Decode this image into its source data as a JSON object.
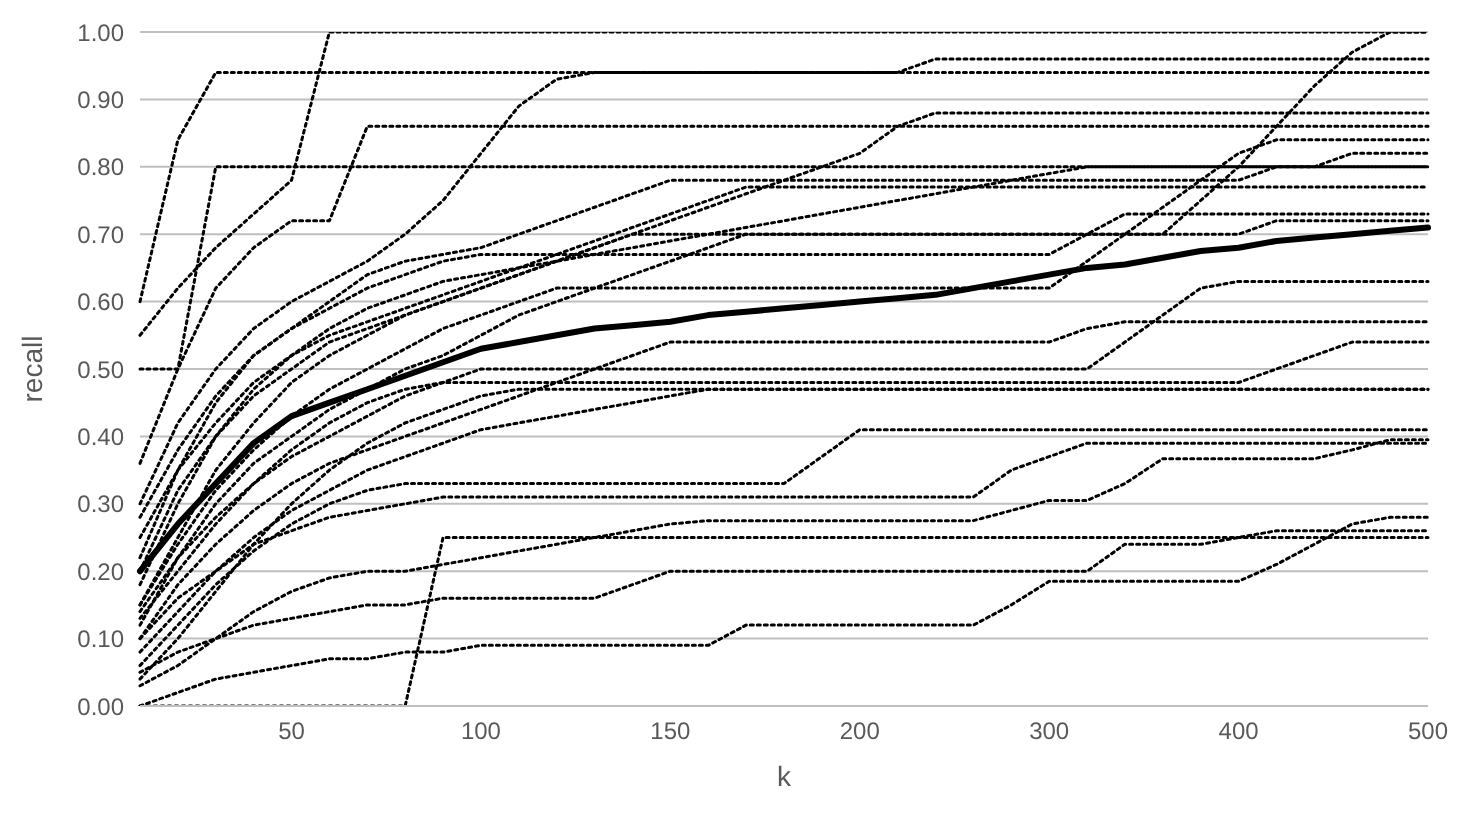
{
  "chart_data": {
    "type": "line",
    "xlabel": "k",
    "ylabel": "recall",
    "grid": "y",
    "marker": "none",
    "line_style": "dotted",
    "categories": [
      null,
      null,
      null,
      null,
      "50",
      null,
      null,
      null,
      null,
      "100",
      null,
      null,
      null,
      null,
      "150",
      null,
      null,
      null,
      null,
      "200",
      null,
      null,
      null,
      null,
      "300",
      null,
      null,
      null,
      null,
      "400",
      null,
      null,
      null,
      null,
      "500"
    ],
    "ylim": [
      0,
      1
    ],
    "yticks": [
      {
        "value": 0,
        "label": "0.00"
      },
      {
        "value": 0.1,
        "label": "0.10"
      },
      {
        "value": 0.2,
        "label": "0.20"
      },
      {
        "value": 0.3,
        "label": "0.30"
      },
      {
        "value": 0.4,
        "label": "0.40"
      },
      {
        "value": 0.5,
        "label": "0.50"
      },
      {
        "value": 0.6,
        "label": "0.60"
      },
      {
        "value": 0.7,
        "label": "0.70"
      },
      {
        "value": 0.8,
        "label": "0.80"
      },
      {
        "value": 0.9,
        "label": "0.90"
      },
      {
        "value": 1,
        "label": "1.00"
      }
    ],
    "series": [
      {
        "color": "#000000",
        "values": [
          0.6,
          0.84,
          0.94,
          0.94,
          0.94,
          0.94,
          0.94,
          0.94,
          0.94,
          0.94,
          0.94,
          0.94,
          0.94,
          0.94,
          0.94,
          0.94,
          0.94,
          0.94,
          0.94,
          0.94,
          0.94,
          0.96,
          0.96,
          0.96,
          0.96,
          0.96,
          0.96,
          0.96,
          0.96,
          0.96,
          0.96,
          0.96,
          0.96,
          0.96,
          0.96
        ]
      },
      {
        "color": "#000000",
        "values": [
          0.55,
          0.62,
          0.68,
          0.73,
          0.78,
          1.0,
          1.0,
          1.0,
          1.0,
          1.0,
          1.0,
          1.0,
          1.0,
          1.0,
          1.0,
          1.0,
          1.0,
          1.0,
          1.0,
          1.0,
          1.0,
          1.0,
          1.0,
          1.0,
          1.0,
          1.0,
          1.0,
          1.0,
          1.0,
          1.0,
          1.0,
          1.0,
          1.0,
          1.0,
          1.0
        ]
      },
      {
        "color": "#000000",
        "values": [
          0.5,
          0.5,
          0.8,
          0.8,
          0.8,
          0.8,
          0.8,
          0.8,
          0.8,
          0.8,
          0.8,
          0.8,
          0.8,
          0.8,
          0.8,
          0.8,
          0.8,
          0.8,
          0.8,
          0.8,
          0.8,
          0.8,
          0.8,
          0.8,
          0.8,
          0.8,
          0.8,
          0.8,
          0.8,
          0.8,
          0.8,
          0.8,
          0.8,
          0.8,
          0.8
        ]
      },
      {
        "color": "#000000",
        "values": [
          0.36,
          0.5,
          0.62,
          0.68,
          0.72,
          0.72,
          0.86,
          0.86,
          0.86,
          0.86,
          0.86,
          0.86,
          0.86,
          0.86,
          0.86,
          0.86,
          0.86,
          0.86,
          0.86,
          0.86,
          0.86,
          0.86,
          0.86,
          0.86,
          0.86,
          0.86,
          0.86,
          0.86,
          0.86,
          0.86,
          0.86,
          0.86,
          0.86,
          0.86,
          0.86
        ]
      },
      {
        "color": "#000000",
        "values": [
          0.3,
          0.42,
          0.5,
          0.56,
          0.6,
          0.63,
          0.66,
          0.7,
          0.75,
          0.82,
          0.89,
          0.93,
          0.94,
          0.94,
          0.94,
          0.94,
          0.94,
          0.94,
          0.94,
          0.94,
          0.94,
          0.94,
          0.94,
          0.94,
          0.94,
          0.94,
          0.94,
          0.94,
          0.94,
          0.94,
          0.94,
          0.94,
          0.94,
          0.94,
          0.94
        ]
      },
      {
        "color": "#000000",
        "values": [
          0.15,
          0.25,
          0.35,
          0.42,
          0.48,
          0.52,
          0.55,
          0.58,
          0.6,
          0.62,
          0.64,
          0.66,
          0.68,
          0.7,
          0.7,
          0.7,
          0.7,
          0.7,
          0.7,
          0.7,
          0.7,
          0.7,
          0.7,
          0.7,
          0.7,
          0.7,
          0.7,
          0.7,
          0.75,
          0.8,
          0.86,
          0.92,
          0.97,
          1.0,
          1.0
        ]
      },
      {
        "color": "#000000",
        "values": [
          0.22,
          0.35,
          0.45,
          0.52,
          0.56,
          0.6,
          0.64,
          0.66,
          0.67,
          0.68,
          0.7,
          0.72,
          0.74,
          0.76,
          0.78,
          0.78,
          0.78,
          0.78,
          0.78,
          0.78,
          0.78,
          0.78,
          0.78,
          0.78,
          0.78,
          0.78,
          0.78,
          0.78,
          0.78,
          0.78,
          0.8,
          0.8,
          0.82,
          0.82,
          0.82
        ]
      },
      {
        "color": "#000000",
        "values": [
          0.18,
          0.3,
          0.4,
          0.46,
          0.5,
          0.54,
          0.56,
          0.58,
          0.6,
          0.62,
          0.64,
          0.66,
          0.68,
          0.7,
          0.72,
          0.74,
          0.76,
          0.78,
          0.8,
          0.82,
          0.86,
          0.88,
          0.88,
          0.88,
          0.88,
          0.88,
          0.88,
          0.88,
          0.88,
          0.88,
          0.88,
          0.88,
          0.88,
          0.88,
          0.88
        ]
      },
      {
        "color": "#000000",
        "values": [
          0.15,
          0.24,
          0.32,
          0.38,
          0.43,
          0.47,
          0.5,
          0.53,
          0.56,
          0.58,
          0.6,
          0.62,
          0.62,
          0.62,
          0.62,
          0.62,
          0.62,
          0.62,
          0.62,
          0.62,
          0.62,
          0.62,
          0.62,
          0.62,
          0.62,
          0.66,
          0.7,
          0.74,
          0.78,
          0.82,
          0.84,
          0.84,
          0.84,
          0.84,
          0.84
        ]
      },
      {
        "color": "#000000",
        "values": [
          0.12,
          0.22,
          0.3,
          0.36,
          0.4,
          0.44,
          0.47,
          0.5,
          0.52,
          0.55,
          0.58,
          0.6,
          0.62,
          0.64,
          0.66,
          0.68,
          0.7,
          0.7,
          0.7,
          0.7,
          0.7,
          0.7,
          0.7,
          0.7,
          0.7,
          0.7,
          0.7,
          0.7,
          0.7,
          0.7,
          0.72,
          0.72,
          0.72,
          0.72,
          0.72
        ]
      },
      {
        "color": "#000000",
        "values": [
          0.25,
          0.35,
          0.42,
          0.48,
          0.52,
          0.55,
          0.57,
          0.59,
          0.61,
          0.63,
          0.65,
          0.67,
          0.69,
          0.71,
          0.73,
          0.75,
          0.77,
          0.77,
          0.77,
          0.77,
          0.77,
          0.77,
          0.77,
          0.77,
          0.77,
          0.77,
          0.77,
          0.77,
          0.77,
          0.77,
          0.77,
          0.77,
          0.77,
          0.77,
          0.77
        ]
      },
      {
        "color": "#000000",
        "values": [
          0.14,
          0.22,
          0.28,
          0.33,
          0.37,
          0.4,
          0.43,
          0.46,
          0.48,
          0.5,
          0.5,
          0.5,
          0.5,
          0.5,
          0.5,
          0.5,
          0.5,
          0.5,
          0.5,
          0.5,
          0.5,
          0.5,
          0.5,
          0.5,
          0.5,
          0.5,
          0.54,
          0.58,
          0.62,
          0.63,
          0.63,
          0.63,
          0.63,
          0.63,
          0.63
        ]
      },
      {
        "color": "#000000",
        "values": [
          0.1,
          0.18,
          0.24,
          0.29,
          0.33,
          0.36,
          0.38,
          0.4,
          0.42,
          0.44,
          0.46,
          0.48,
          0.5,
          0.52,
          0.54,
          0.54,
          0.54,
          0.54,
          0.54,
          0.54,
          0.54,
          0.54,
          0.54,
          0.54,
          0.54,
          0.56,
          0.57,
          0.57,
          0.57,
          0.57,
          0.57,
          0.57,
          0.57,
          0.57,
          0.57
        ]
      },
      {
        "color": "#000000",
        "values": [
          0.13,
          0.2,
          0.27,
          0.33,
          0.38,
          0.42,
          0.45,
          0.47,
          0.48,
          0.48,
          0.48,
          0.48,
          0.48,
          0.48,
          0.48,
          0.48,
          0.48,
          0.48,
          0.48,
          0.48,
          0.48,
          0.48,
          0.48,
          0.48,
          0.48,
          0.48,
          0.48,
          0.48,
          0.48,
          0.48,
          0.5,
          0.52,
          0.54,
          0.54,
          0.54
        ]
      },
      {
        "color": "#000000",
        "values": [
          0.08,
          0.14,
          0.2,
          0.25,
          0.29,
          0.32,
          0.35,
          0.37,
          0.39,
          0.41,
          0.42,
          0.43,
          0.44,
          0.45,
          0.46,
          0.47,
          0.47,
          0.47,
          0.47,
          0.47,
          0.47,
          0.47,
          0.47,
          0.47,
          0.47,
          0.47,
          0.47,
          0.47,
          0.47,
          0.47,
          0.47,
          0.47,
          0.47,
          0.47,
          0.47
        ]
      },
      {
        "color": "#000000",
        "values": [
          0.06,
          0.12,
          0.18,
          0.23,
          0.27,
          0.3,
          0.32,
          0.33,
          0.33,
          0.33,
          0.33,
          0.33,
          0.33,
          0.33,
          0.33,
          0.33,
          0.33,
          0.33,
          0.37,
          0.41,
          0.41,
          0.41,
          0.41,
          0.41,
          0.41,
          0.41,
          0.41,
          0.41,
          0.41,
          0.41,
          0.41,
          0.41,
          0.41,
          0.41,
          0.41
        ]
      },
      {
        "color": "#000000",
        "values": [
          0.1,
          0.16,
          0.2,
          0.24,
          0.26,
          0.28,
          0.29,
          0.3,
          0.31,
          0.31,
          0.31,
          0.31,
          0.31,
          0.31,
          0.31,
          0.31,
          0.31,
          0.31,
          0.31,
          0.31,
          0.31,
          0.31,
          0.31,
          0.35,
          0.37,
          0.39,
          0.39,
          0.39,
          0.39,
          0.39,
          0.39,
          0.39,
          0.39,
          0.39,
          0.39
        ]
      },
      {
        "color": "#000000",
        "values": [
          0.03,
          0.06,
          0.1,
          0.14,
          0.17,
          0.19,
          0.2,
          0.2,
          0.21,
          0.22,
          0.23,
          0.24,
          0.25,
          0.26,
          0.27,
          0.275,
          0.275,
          0.275,
          0.275,
          0.275,
          0.275,
          0.275,
          0.275,
          0.29,
          0.305,
          0.305,
          0.33,
          0.367,
          0.367,
          0.367,
          0.367,
          0.367,
          0.38,
          0.395,
          0.395
        ]
      },
      {
        "color": "#000000",
        "values": [
          0.0,
          0.02,
          0.04,
          0.05,
          0.06,
          0.07,
          0.07,
          0.08,
          0.08,
          0.09,
          0.09,
          0.09,
          0.09,
          0.09,
          0.09,
          0.09,
          0.12,
          0.12,
          0.12,
          0.12,
          0.12,
          0.12,
          0.12,
          0.15,
          0.185,
          0.185,
          0.185,
          0.185,
          0.185,
          0.185,
          0.21,
          0.24,
          0.27,
          0.28,
          0.28
        ]
      },
      {
        "color": "#000000",
        "values": [
          0.05,
          0.08,
          0.1,
          0.12,
          0.13,
          0.14,
          0.15,
          0.15,
          0.16,
          0.16,
          0.16,
          0.16,
          0.16,
          0.18,
          0.2,
          0.2,
          0.2,
          0.2,
          0.2,
          0.2,
          0.2,
          0.2,
          0.2,
          0.2,
          0.2,
          0.2,
          0.24,
          0.24,
          0.24,
          0.25,
          0.26,
          0.26,
          0.26,
          0.26,
          0.26
        ]
      },
      {
        "color": "#000000",
        "values": [
          0.0,
          0.0,
          0.0,
          0.0,
          0.0,
          0.0,
          0.0,
          0.0,
          0.25,
          0.25,
          0.25,
          0.25,
          0.25,
          0.25,
          0.25,
          0.25,
          0.25,
          0.25,
          0.25,
          0.25,
          0.25,
          0.25,
          0.25,
          0.25,
          0.25,
          0.25,
          0.25,
          0.25,
          0.25,
          0.25,
          0.25,
          0.25,
          0.25,
          0.25,
          0.25
        ]
      },
      {
        "color": "#000000",
        "values": [
          0.04,
          0.1,
          0.17,
          0.24,
          0.3,
          0.35,
          0.39,
          0.42,
          0.44,
          0.46,
          0.47,
          0.47,
          0.47,
          0.47,
          0.47,
          0.47,
          0.47,
          0.47,
          0.47,
          0.47,
          0.47,
          0.47,
          0.47,
          0.47,
          0.47,
          0.47,
          0.47,
          0.47,
          0.47,
          0.47,
          0.47,
          0.47,
          0.47,
          0.47,
          0.47
        ]
      },
      {
        "color": "#000000",
        "values": [
          0.28,
          0.38,
          0.46,
          0.52,
          0.56,
          0.59,
          0.62,
          0.64,
          0.66,
          0.67,
          0.67,
          0.67,
          0.67,
          0.67,
          0.67,
          0.67,
          0.67,
          0.67,
          0.67,
          0.67,
          0.67,
          0.67,
          0.67,
          0.67,
          0.67,
          0.7,
          0.73,
          0.73,
          0.73,
          0.73,
          0.73,
          0.73,
          0.73,
          0.73,
          0.73
        ]
      },
      {
        "color": "#000000",
        "values": [
          0.2,
          0.32,
          0.4,
          0.47,
          0.52,
          0.56,
          0.59,
          0.61,
          0.63,
          0.64,
          0.65,
          0.66,
          0.67,
          0.68,
          0.69,
          0.7,
          0.71,
          0.72,
          0.73,
          0.74,
          0.75,
          0.76,
          0.77,
          0.78,
          0.79,
          0.8,
          0.8,
          0.8,
          0.8,
          0.8,
          0.8,
          0.8,
          0.8,
          0.8,
          0.8
        ]
      },
      {
        "color": "#000000",
        "line_style": "solid",
        "values": [
          0.2,
          0.27,
          0.33,
          0.39,
          0.43,
          0.45,
          0.47,
          0.49,
          0.51,
          0.53,
          0.54,
          0.55,
          0.56,
          0.565,
          0.57,
          0.58,
          0.585,
          0.59,
          0.595,
          0.6,
          0.605,
          0.61,
          0.62,
          0.63,
          0.64,
          0.65,
          0.655,
          0.665,
          0.675,
          0.68,
          0.69,
          0.695,
          0.7,
          0.705,
          0.71
        ]
      }
    ]
  }
}
